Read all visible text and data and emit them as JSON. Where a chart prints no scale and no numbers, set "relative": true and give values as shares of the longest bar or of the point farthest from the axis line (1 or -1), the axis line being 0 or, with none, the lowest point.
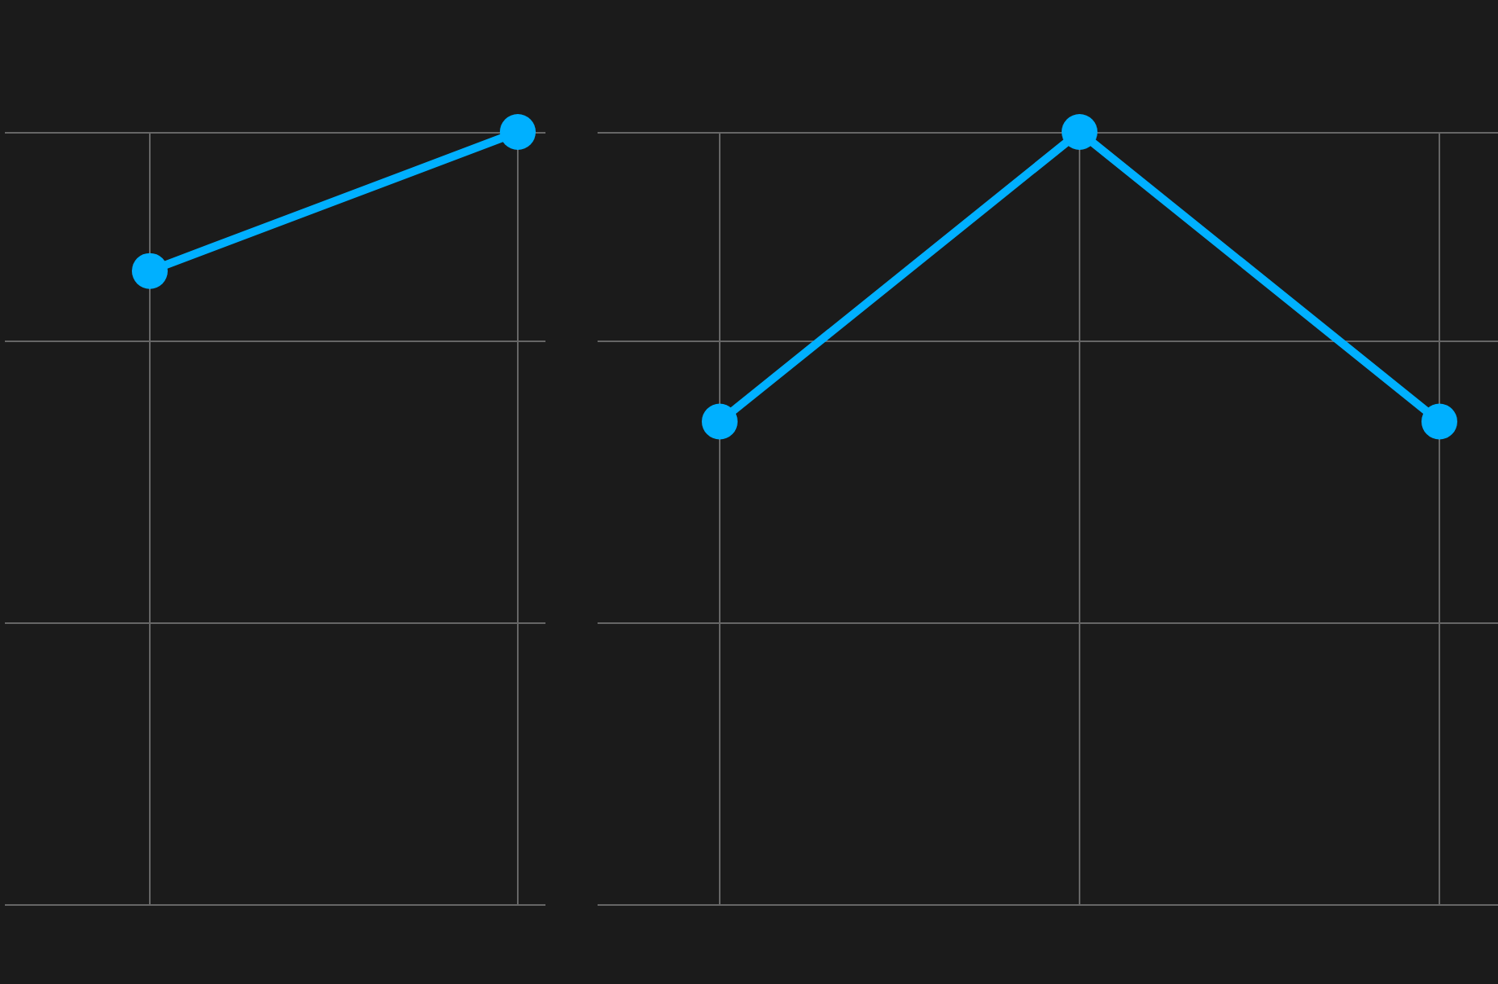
{
  "chart_data": [
    {
      "type": "line",
      "relative": true,
      "categories": [
        null,
        null
      ],
      "series": [
        {
          "color": "#00b0ff",
          "values": [
            0.82,
            1
          ]
        }
      ],
      "grid": true,
      "legend": false,
      "marker": "circle",
      "line_style": "solid"
    },
    {
      "type": "line",
      "relative": true,
      "categories": [
        null,
        null,
        null
      ],
      "series": [
        {
          "color": "#00b0ff",
          "values": [
            0.625,
            1,
            0.625
          ]
        }
      ],
      "grid": true,
      "legend": false,
      "marker": "circle",
      "line_style": "solid"
    }
  ]
}
